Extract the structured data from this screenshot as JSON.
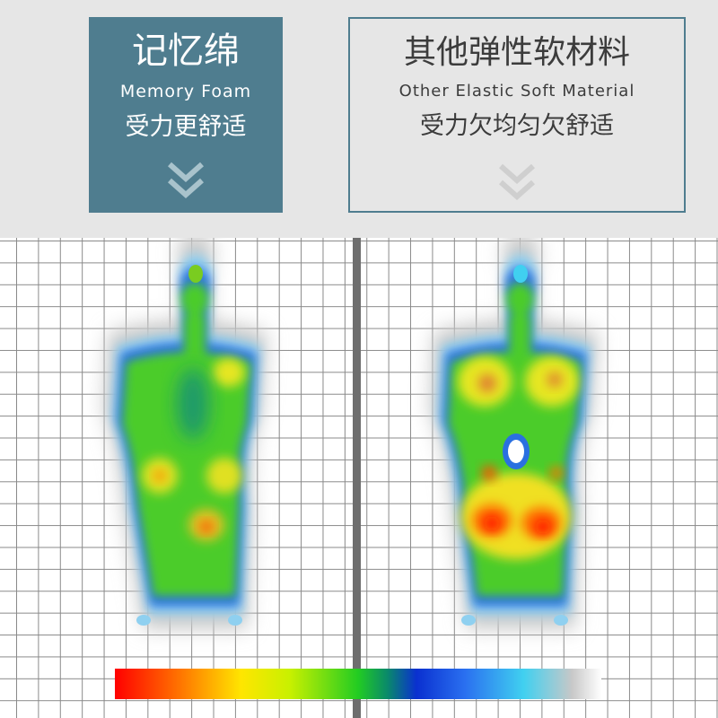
{
  "left_card": {
    "title": "记忆绵",
    "subtitle_en": "Memory Foam",
    "subtitle_cn": "受力更舒适",
    "icon": "double-chevron-down-icon",
    "color": "#4f7d8f"
  },
  "right_card": {
    "title": "其他弹性软材料",
    "subtitle_en": "Other Elastic Soft Material",
    "subtitle_cn": "受力欠均匀欠舒适",
    "icon": "double-chevron-down-icon",
    "border_color": "#4f7d8f"
  },
  "pressure_scale": {
    "colors": [
      "#ff0000",
      "#ff7a00",
      "#ffe600",
      "#22cc22",
      "#0a30d0",
      "#40d0f0",
      "#c8c8c8"
    ]
  }
}
